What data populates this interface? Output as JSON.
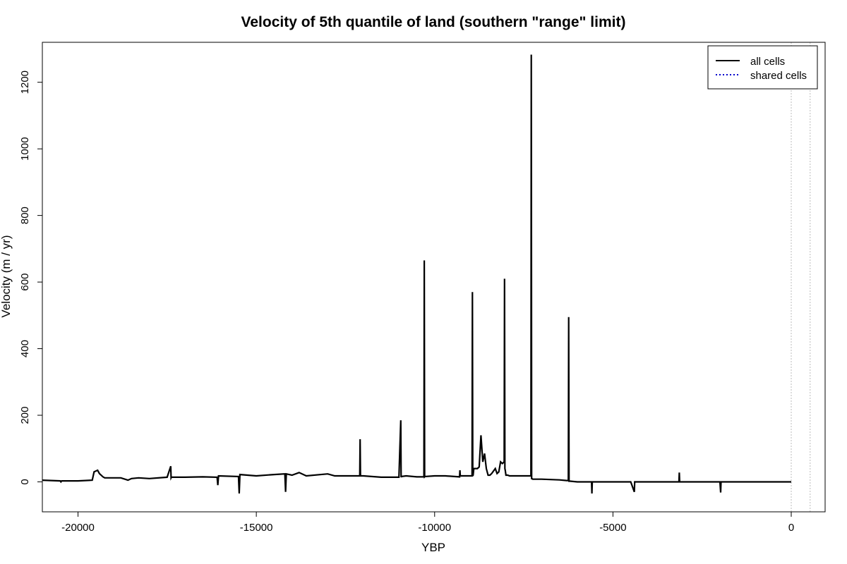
{
  "chart_data": {
    "type": "line",
    "title": "Velocity of 5th quantile of land (southern \"range\" limit)",
    "xlabel": "YBP",
    "ylabel": "Velocity (m / yr)",
    "xlim": [
      -21000,
      950
    ],
    "ylim": [
      -90,
      1320
    ],
    "x_ticks": [
      -20000,
      -15000,
      -10000,
      -5000,
      0
    ],
    "y_ticks": [
      0,
      200,
      400,
      600,
      800,
      1000,
      1200
    ],
    "x_tick_labels": [
      "-20000",
      "-15000",
      "-10000",
      "-5000",
      "0"
    ],
    "y_tick_labels": [
      "0",
      "200",
      "400",
      "600",
      "800",
      "1000",
      "1200"
    ],
    "grid": false,
    "reference_lines_x": [
      0,
      530
    ],
    "legend": {
      "position": "top-right",
      "entries": [
        {
          "label": "all cells",
          "style": "solid",
          "color": "#000000"
        },
        {
          "label": "shared cells",
          "style": "dotted",
          "color": "#0000cc"
        }
      ]
    },
    "series": [
      {
        "name": "all cells",
        "color": "#000000",
        "style": "solid",
        "x": [
          -21000,
          -20500,
          -20480,
          -20460,
          -20000,
          -19600,
          -19550,
          -19450,
          -19400,
          -19300,
          -19250,
          -18800,
          -18600,
          -18500,
          -18300,
          -18000,
          -17500,
          -17400,
          -17390,
          -17380,
          -17000,
          -16500,
          -16100,
          -16080,
          -16060,
          -15500,
          -15480,
          -15460,
          -15000,
          -14500,
          -14200,
          -14180,
          -14160,
          -14000,
          -13800,
          -13600,
          -13000,
          -12800,
          -12500,
          -12200,
          -12100,
          -12090,
          -12080,
          -12000,
          -11500,
          -11000,
          -10950,
          -10940,
          -10930,
          -10800,
          -10500,
          -10300,
          -10290,
          -10280,
          -10270,
          -10000,
          -9700,
          -9300,
          -9290,
          -9280,
          -9000,
          -8950,
          -8940,
          -8930,
          -8920,
          -8900,
          -8800,
          -8750,
          -8700,
          -8650,
          -8600,
          -8550,
          -8500,
          -8450,
          -8400,
          -8300,
          -8250,
          -8200,
          -8150,
          -8100,
          -8050,
          -8040,
          -8030,
          -8020,
          -8000,
          -7950,
          -7900,
          -7800,
          -7600,
          -7400,
          -7300,
          -7290,
          -7280,
          -7270,
          -7250,
          -7000,
          -6500,
          -6300,
          -6250,
          -6240,
          -6230,
          -6200,
          -6000,
          -5800,
          -5600,
          -5590,
          -5580,
          -5500,
          -5000,
          -4500,
          -4400,
          -4390,
          -4380,
          -4300,
          -4000,
          -3500,
          -3200,
          -3150,
          -3140,
          -3130,
          -3000,
          -2500,
          -2000,
          -1980,
          -1970,
          -1960,
          -1500,
          -1000,
          -500,
          0
        ],
        "values": [
          5,
          3,
          0,
          3,
          3,
          5,
          30,
          35,
          25,
          15,
          12,
          12,
          5,
          10,
          12,
          10,
          14,
          47,
          12,
          14,
          14,
          15,
          14,
          -10,
          18,
          16,
          -35,
          22,
          18,
          22,
          24,
          -30,
          24,
          20,
          28,
          18,
          24,
          18,
          18,
          18,
          18,
          128,
          18,
          18,
          14,
          14,
          185,
          14,
          16,
          18,
          15,
          15,
          665,
          15,
          16,
          18,
          18,
          15,
          35,
          18,
          18,
          18,
          570,
          18,
          20,
          40,
          40,
          45,
          140,
          60,
          85,
          40,
          20,
          20,
          25,
          40,
          25,
          30,
          60,
          55,
          60,
          610,
          40,
          35,
          20,
          20,
          18,
          18,
          18,
          18,
          18,
          1283,
          10,
          10,
          8,
          8,
          6,
          4,
          4,
          495,
          2,
          2,
          0,
          0,
          0,
          -35,
          0,
          0,
          0,
          0,
          -30,
          0,
          0,
          0,
          0,
          0,
          0,
          0,
          28,
          0,
          0,
          0,
          0,
          -32,
          0,
          0,
          0,
          0,
          0,
          0
        ]
      }
    ]
  }
}
